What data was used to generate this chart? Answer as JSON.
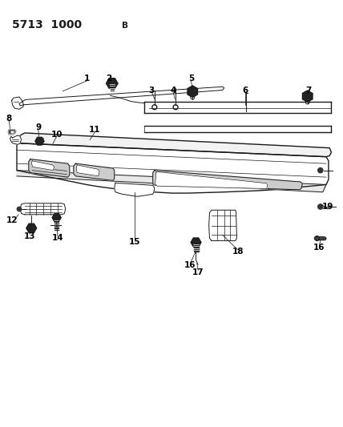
{
  "title_num": "5713  1000",
  "title_letter": "B",
  "bg_color": "#ffffff",
  "line_color": "#1a1a1a",
  "figsize": [
    4.28,
    5.33
  ],
  "dpi": 100,
  "xlim": [
    0,
    10
  ],
  "ylim": [
    0,
    12.5
  ]
}
